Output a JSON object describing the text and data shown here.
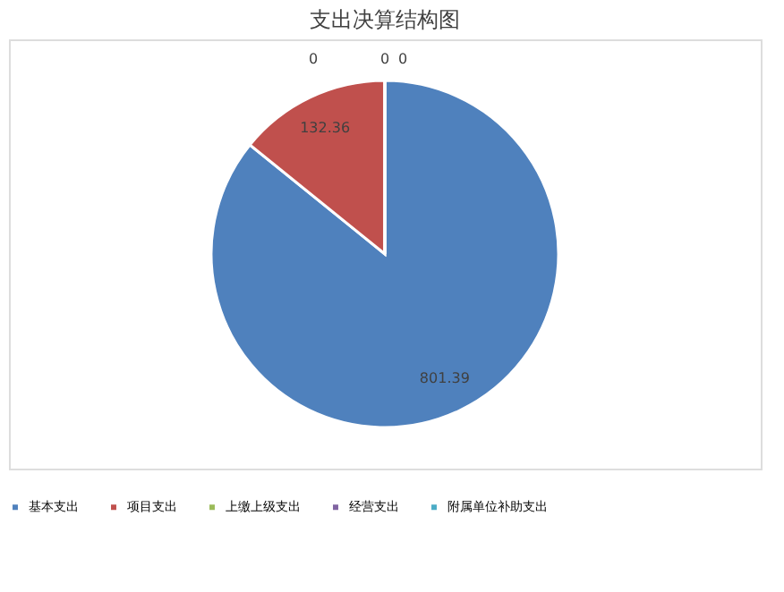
{
  "chart_data": {
    "type": "pie",
    "title": "支出决算结构图",
    "categories": [
      "基本支出",
      "项目支出",
      "上缴上级支出",
      "经营支出",
      "附属单位补助支出"
    ],
    "values": [
      801.39,
      132.36,
      0,
      0,
      0
    ],
    "colors": [
      "#4f81bd",
      "#c0504d",
      "#9bbb59",
      "#8064a2",
      "#4bacc6"
    ],
    "value_labels": [
      "801.39",
      "132.36",
      "0",
      "0",
      "0"
    ],
    "legend": "bottom"
  }
}
